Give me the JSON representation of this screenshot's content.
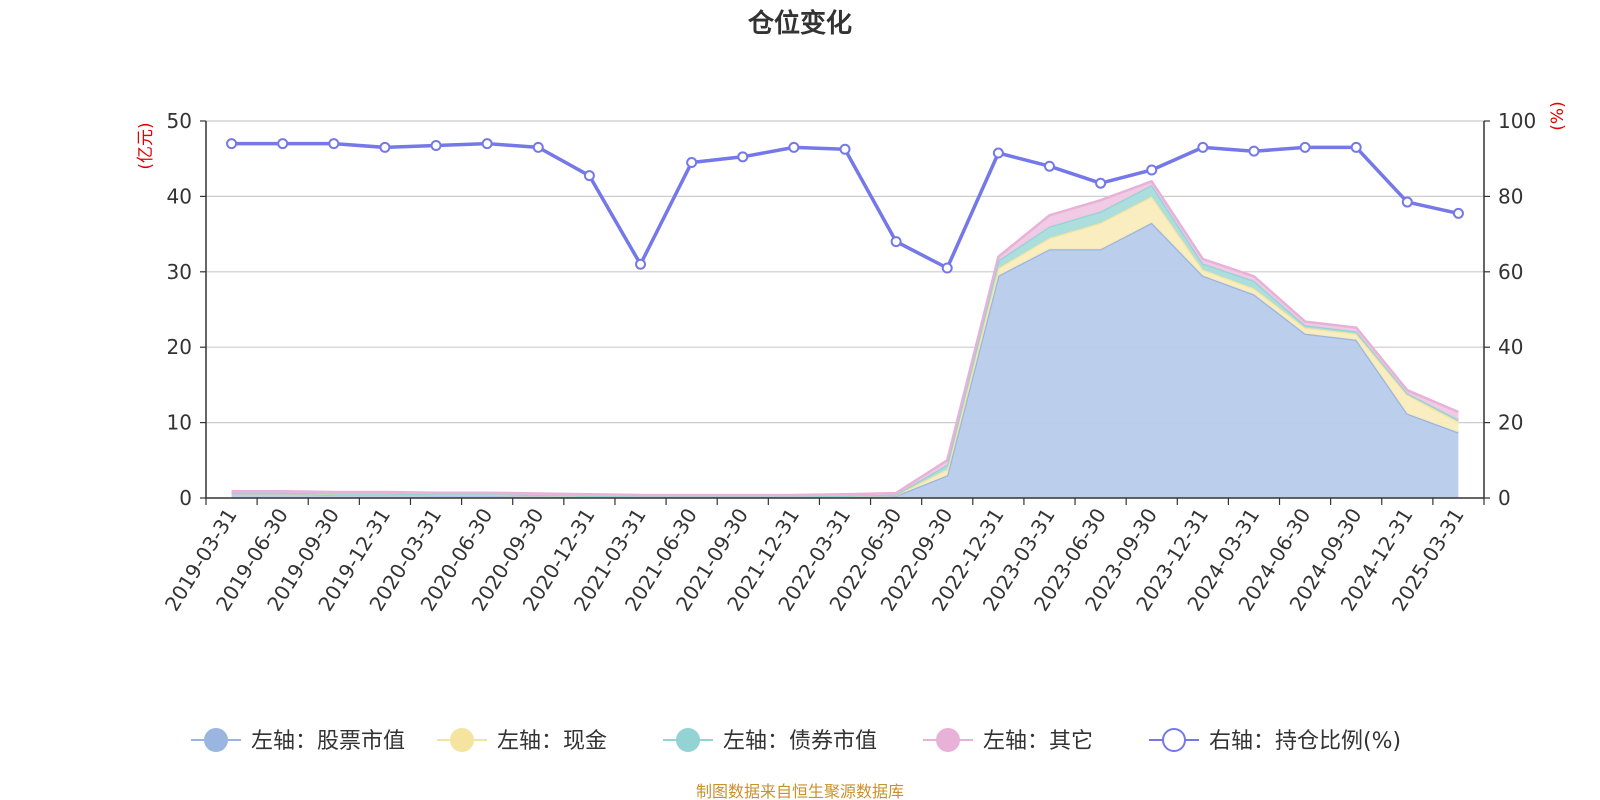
{
  "chart_data": {
    "type": "area",
    "title": "仓位变化",
    "left_axis": {
      "unit": "(亿元)",
      "range": [
        0,
        50
      ],
      "ticks": [
        "0",
        "10",
        "20",
        "30",
        "40",
        "50"
      ]
    },
    "right_axis": {
      "unit": "(%)",
      "range": [
        0,
        100
      ],
      "ticks": [
        "0",
        "20",
        "40",
        "60",
        "80",
        "100"
      ]
    },
    "x": [
      "2019-03-31",
      "2019-06-30",
      "2019-09-30",
      "2019-12-31",
      "2020-03-31",
      "2020-06-30",
      "2020-09-30",
      "2020-12-31",
      "2021-03-31",
      "2021-06-30",
      "2021-09-30",
      "2021-12-31",
      "2022-03-31",
      "2022-06-30",
      "2022-09-30",
      "2022-12-31",
      "2023-03-31",
      "2023-06-30",
      "2023-09-30",
      "2023-12-31",
      "2024-03-31",
      "2024-06-30",
      "2024-09-30",
      "2024-12-31",
      "2025-03-31"
    ],
    "stacked_series": [
      {
        "name": "左轴：股票市值",
        "axis": "left",
        "color": "#9ab5e0",
        "fill": "#b7cbea",
        "values": [
          0.6,
          0.6,
          0.5,
          0.5,
          0.4,
          0.4,
          0.3,
          0.2,
          0.1,
          0.1,
          0.1,
          0.1,
          0.2,
          0.3,
          3.0,
          29.5,
          33.0,
          33.0,
          36.5,
          29.5,
          27.0,
          21.8,
          21.0,
          11.2,
          8.7
        ]
      },
      {
        "name": "左轴：现金",
        "axis": "left",
        "color": "#f5e3a0",
        "fill": "#faecbc",
        "values": [
          0.05,
          0.05,
          0.05,
          0.05,
          0.05,
          0.05,
          0.05,
          0.05,
          0.05,
          0.05,
          0.05,
          0.05,
          0.05,
          0.1,
          0.8,
          1.0,
          1.5,
          3.5,
          3.5,
          0.8,
          0.8,
          0.8,
          0.8,
          2.5,
          1.4
        ]
      },
      {
        "name": "左轴：债券市值",
        "axis": "left",
        "color": "#93d3d4",
        "fill": "#a8dcdc",
        "values": [
          0.05,
          0.05,
          0.05,
          0.05,
          0.05,
          0.05,
          0.05,
          0.05,
          0.05,
          0.05,
          0.05,
          0.05,
          0.05,
          0.05,
          0.6,
          1.0,
          1.5,
          1.5,
          1.5,
          0.8,
          1.0,
          0.3,
          0.3,
          0.2,
          0.3
        ]
      },
      {
        "name": "左轴：其它",
        "axis": "left",
        "color": "#e7b1d8",
        "fill": "#f0c8e4",
        "values": [
          0.2,
          0.2,
          0.2,
          0.2,
          0.2,
          0.2,
          0.2,
          0.2,
          0.2,
          0.2,
          0.2,
          0.2,
          0.2,
          0.2,
          0.6,
          0.5,
          1.5,
          1.5,
          0.5,
          0.6,
          0.6,
          0.5,
          0.5,
          0.4,
          1.0
        ]
      }
    ],
    "line_series": {
      "name": "右轴：持仓比例(%)",
      "axis": "right",
      "color": "#7478e8",
      "values": [
        94,
        94,
        94,
        93,
        93.5,
        94,
        93,
        85.5,
        62,
        89,
        90.5,
        93,
        92.5,
        68,
        61,
        91.5,
        88,
        83.5,
        87,
        93,
        92,
        93,
        93,
        78.5,
        75.5
      ]
    },
    "grid": true,
    "legend_position": "bottom-center"
  },
  "source_note": "制图数据来自恒生聚源数据库"
}
